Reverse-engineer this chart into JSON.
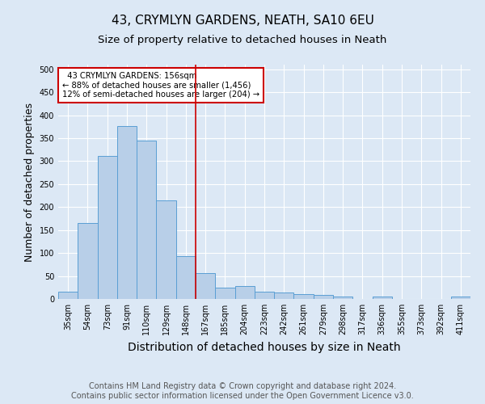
{
  "title": "43, CRYMLYN GARDENS, NEATH, SA10 6EU",
  "subtitle": "Size of property relative to detached houses in Neath",
  "xlabel": "Distribution of detached houses by size in Neath",
  "ylabel": "Number of detached properties",
  "categories": [
    "35sqm",
    "54sqm",
    "73sqm",
    "91sqm",
    "110sqm",
    "129sqm",
    "148sqm",
    "167sqm",
    "185sqm",
    "204sqm",
    "223sqm",
    "242sqm",
    "261sqm",
    "279sqm",
    "298sqm",
    "317sqm",
    "336sqm",
    "355sqm",
    "373sqm",
    "392sqm",
    "411sqm"
  ],
  "values": [
    15,
    165,
    312,
    377,
    345,
    215,
    93,
    56,
    24,
    29,
    15,
    14,
    10,
    8,
    5,
    0,
    5,
    0,
    0,
    0,
    5
  ],
  "bar_color": "#b8cfe8",
  "bar_edge_color": "#5a9fd4",
  "vline_x_index": 6.5,
  "vline_color": "#cc0000",
  "annotation_text": "  43 CRYMLYN GARDENS: 156sqm\n← 88% of detached houses are smaller (1,456)\n12% of semi-detached houses are larger (204) →",
  "annotation_box_color": "#ffffff",
  "annotation_box_edge_color": "#cc0000",
  "ylim": [
    0,
    510
  ],
  "yticks": [
    0,
    50,
    100,
    150,
    200,
    250,
    300,
    350,
    400,
    450,
    500
  ],
  "fig_bg_color": "#dce8f5",
  "plot_bg_color": "#dce8f5",
  "footer_text": "Contains HM Land Registry data © Crown copyright and database right 2024.\nContains public sector information licensed under the Open Government Licence v3.0.",
  "title_fontsize": 11,
  "subtitle_fontsize": 9.5,
  "xlabel_fontsize": 10,
  "ylabel_fontsize": 9,
  "tick_fontsize": 7,
  "footer_fontsize": 7
}
